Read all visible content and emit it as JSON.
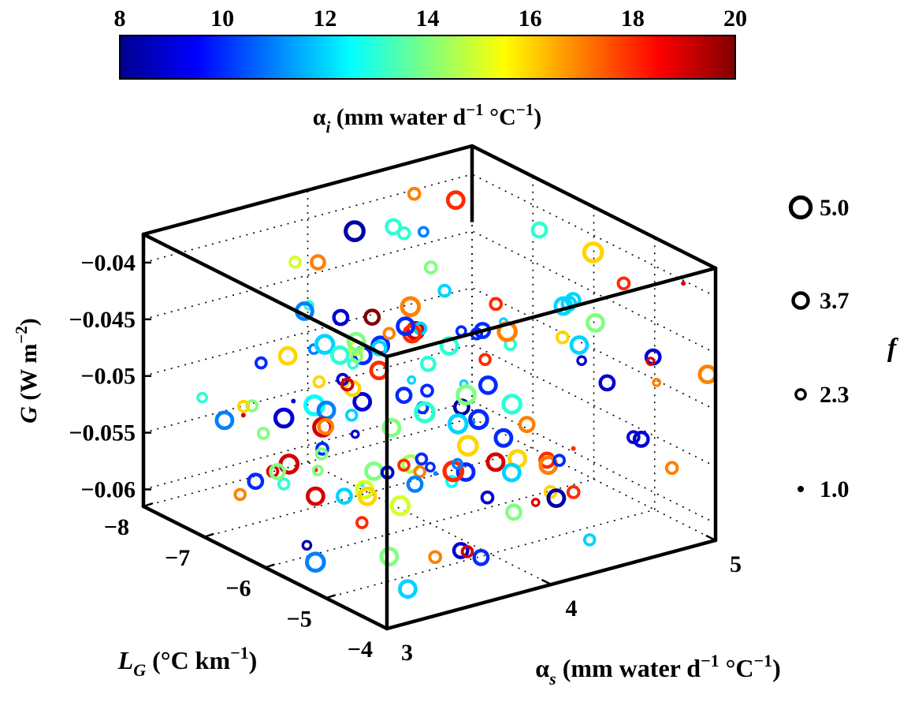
{
  "chart_data": {
    "type": "scatter",
    "title": "",
    "colorbar": {
      "ticks": [
        "8",
        "10",
        "12",
        "14",
        "16",
        "18",
        "20"
      ],
      "range": [
        8,
        20
      ],
      "colormap": "jet",
      "label_main": "α",
      "label_sub": "i",
      "label_rest": " (mm water d",
      "label_exp1": "−1",
      "label_mid": " °C",
      "label_exp2": "−1",
      "label_end": ")"
    },
    "axes": {
      "g": {
        "label_main": "G",
        "label_rest": " (W m",
        "label_exp": "−2",
        "label_end": ")",
        "ticks": [
          "−0.04",
          "−0.045",
          "−0.05",
          "−0.055",
          "−0.06"
        ],
        "range": [
          -0.0615,
          -0.0375
        ]
      },
      "lg": {
        "label_main": "L",
        "label_sub": "G",
        "label_rest": " (°C km",
        "label_exp": "−1",
        "label_end": ")",
        "ticks": [
          "−4",
          "−5",
          "−6",
          "−7",
          "−8"
        ],
        "range": [
          -4,
          -8
        ]
      },
      "as": {
        "label_main": "α",
        "label_sub": "s",
        "label_rest": " (mm water d",
        "label_exp1": "−1",
        "label_mid": " °C",
        "label_exp2": "−1",
        "label_end": ")",
        "ticks": [
          "3",
          "4",
          "5"
        ],
        "range": [
          3,
          5
        ]
      }
    },
    "size_legend": {
      "title": "f",
      "entries": [
        {
          "label": "5.0",
          "value": 5.0
        },
        {
          "label": "3.7",
          "value": 3.7
        },
        {
          "label": "2.3",
          "value": 2.3
        },
        {
          "label": "1.0",
          "value": 1.0
        }
      ]
    },
    "points": [
      {
        "c": 12.5,
        "f": 2.3
      },
      {
        "c": 11,
        "f": 1
      },
      {
        "c": 17,
        "f": 1.5
      },
      {
        "c": 10,
        "f": 3.7
      },
      {
        "c": 14,
        "f": 2.3
      },
      {
        "c": 16,
        "f": 2.5
      },
      {
        "c": 14.5,
        "f": 3.7
      },
      {
        "c": 19,
        "f": 1
      },
      {
        "c": 12,
        "f": 1.5
      },
      {
        "c": 10,
        "f": 4
      },
      {
        "c": 18,
        "f": 1
      },
      {
        "c": 9,
        "f": 1
      },
      {
        "c": 13,
        "f": 1
      },
      {
        "c": 12.5,
        "f": 4.2
      },
      {
        "c": 17,
        "f": 2.5
      },
      {
        "c": 11,
        "f": 3.7
      },
      {
        "c": 20,
        "f": 3.2
      },
      {
        "c": 19,
        "f": 2.3
      },
      {
        "c": 8.5,
        "f": 1.8
      },
      {
        "c": 13,
        "f": 2.3
      },
      {
        "c": 10,
        "f": 2.3
      },
      {
        "c": 17,
        "f": 4
      },
      {
        "c": 10,
        "f": 2.3
      },
      {
        "c": 18,
        "f": 2.5
      },
      {
        "c": 12,
        "f": 3
      },
      {
        "c": 18,
        "f": 3.7
      },
      {
        "c": 19,
        "f": 3.7
      },
      {
        "c": 9,
        "f": 2.5
      },
      {
        "c": 12,
        "f": 1.5
      },
      {
        "c": 15,
        "f": 2.3
      },
      {
        "c": 10,
        "f": 3.7
      },
      {
        "c": 13,
        "f": 1.8
      },
      {
        "c": 16,
        "f": 2.5
      },
      {
        "c": 11,
        "f": 2
      },
      {
        "c": 10,
        "f": 3.2
      },
      {
        "c": 9,
        "f": 1.8
      },
      {
        "c": 13,
        "f": 4
      },
      {
        "c": 17,
        "f": 2.3
      },
      {
        "c": 14,
        "f": 3.7
      },
      {
        "c": 8.5,
        "f": 3.2
      },
      {
        "c": 13,
        "f": 2.3
      },
      {
        "c": 19,
        "f": 4
      },
      {
        "c": 13,
        "f": 3
      },
      {
        "c": 12,
        "f": 3.7
      },
      {
        "c": 14,
        "f": 2.3
      },
      {
        "c": 16,
        "f": 3.7
      },
      {
        "c": 9,
        "f": 2.5
      },
      {
        "c": 17,
        "f": 3
      },
      {
        "c": 10,
        "f": 2.3
      },
      {
        "c": 12,
        "f": 4
      },
      {
        "c": 14,
        "f": 3.7
      },
      {
        "c": 19,
        "f": 4
      },
      {
        "c": 10,
        "f": 3.2
      },
      {
        "c": 13,
        "f": 3.7
      },
      {
        "c": 9,
        "f": 3.2
      },
      {
        "c": 12,
        "f": 3.7
      },
      {
        "c": 16,
        "f": 4.2
      },
      {
        "c": 13,
        "f": 3.7
      },
      {
        "c": 18,
        "f": 2.5
      },
      {
        "c": 8.5,
        "f": 4.2
      },
      {
        "c": 11,
        "f": 3.7
      },
      {
        "c": 14,
        "f": 4
      },
      {
        "c": 10,
        "f": 2
      },
      {
        "c": 12,
        "f": 3
      },
      {
        "c": 19,
        "f": 3.7
      },
      {
        "c": 9,
        "f": 3.7
      },
      {
        "c": 14,
        "f": 3.2
      },
      {
        "c": 18,
        "f": 2.3
      },
      {
        "c": 10,
        "f": 2.5
      },
      {
        "c": 16,
        "f": 3.2
      },
      {
        "c": 18,
        "f": 1
      },
      {
        "c": 10,
        "f": 3.7
      },
      {
        "c": 19,
        "f": 1
      },
      {
        "c": 12,
        "f": 3.7
      },
      {
        "c": 17,
        "f": 2.3
      },
      {
        "c": 12,
        "f": 4
      },
      {
        "c": 11,
        "f": 4
      },
      {
        "c": 15,
        "f": 3
      },
      {
        "c": 13,
        "f": 2
      },
      {
        "c": 9,
        "f": 3.2
      },
      {
        "c": 14,
        "f": 3.7
      },
      {
        "c": 8.5,
        "f": 3.7
      },
      {
        "c": 18,
        "f": 3.7
      },
      {
        "c": 9,
        "f": 2.3
      },
      {
        "c": 10,
        "f": 3.2
      },
      {
        "c": 12,
        "f": 2.5
      },
      {
        "c": 17,
        "f": 2.5
      },
      {
        "c": 13,
        "f": 2.5
      },
      {
        "c": 11,
        "f": 1
      },
      {
        "c": 19,
        "f": 1.5
      },
      {
        "c": 10,
        "f": 2.5
      },
      {
        "c": 16,
        "f": 3.7
      },
      {
        "c": 13,
        "f": 2
      },
      {
        "c": 10,
        "f": 3.7
      },
      {
        "c": 18,
        "f": 2.3
      },
      {
        "c": 12,
        "f": 3
      },
      {
        "c": 15,
        "f": 3.7
      },
      {
        "c": 10,
        "f": 2.3
      },
      {
        "c": 17,
        "f": 4
      },
      {
        "c": 14,
        "f": 2.3
      },
      {
        "c": 9,
        "f": 4
      },
      {
        "c": 12,
        "f": 3.2
      },
      {
        "c": 18,
        "f": 2.5
      },
      {
        "c": 11,
        "f": 3.2
      },
      {
        "c": 17,
        "f": 3.2
      },
      {
        "c": 14,
        "f": 3.7
      },
      {
        "c": 16,
        "f": 2.3
      },
      {
        "c": 9,
        "f": 2.5
      },
      {
        "c": 18,
        "f": 3.2
      },
      {
        "c": 12,
        "f": 2.3
      },
      {
        "c": 10,
        "f": 3.7
      },
      {
        "c": 13,
        "f": 3.2
      },
      {
        "c": 19,
        "f": 2.5
      },
      {
        "c": 11,
        "f": 2
      },
      {
        "c": 17,
        "f": 3.7
      },
      {
        "c": 14,
        "f": 3.2
      },
      {
        "c": 9,
        "f": 1.5
      },
      {
        "c": 12,
        "f": 2.3
      },
      {
        "c": 18,
        "f": 4.2
      },
      {
        "c": 16,
        "f": 3.7
      },
      {
        "c": 11,
        "f": 2
      },
      {
        "c": 14,
        "f": 2.5
      },
      {
        "c": 10,
        "f": 3.2
      },
      {
        "c": 15,
        "f": 4
      },
      {
        "c": 19,
        "f": 2.3
      },
      {
        "c": 17,
        "f": 2.3
      },
      {
        "c": 12,
        "f": 2.5
      },
      {
        "c": 9,
        "f": 3.2
      },
      {
        "c": 14,
        "f": 3.7
      },
      {
        "c": 17,
        "f": 3.2
      },
      {
        "c": 10,
        "f": 2.3
      },
      {
        "c": 18,
        "f": 2.3
      },
      {
        "c": 13,
        "f": 4.2
      },
      {
        "c": 16,
        "f": 2.3
      },
      {
        "c": 11,
        "f": 3.7
      },
      {
        "c": 14,
        "f": 2
      },
      {
        "c": 19,
        "f": 3.7
      },
      {
        "c": 12,
        "f": 1.5
      },
      {
        "c": 9,
        "f": 3.2
      },
      {
        "c": 16,
        "f": 4.2
      },
      {
        "c": 17,
        "f": 2.5
      },
      {
        "c": 10,
        "f": 1.8
      },
      {
        "c": 13,
        "f": 3.2
      },
      {
        "c": 18,
        "f": 3.7
      },
      {
        "c": 9,
        "f": 3.2
      },
      {
        "c": 14,
        "f": 2.3
      },
      {
        "c": 12,
        "f": 3.7
      },
      {
        "c": 19,
        "f": 1.5
      },
      {
        "c": 17,
        "f": 3.7
      },
      {
        "c": 10,
        "f": 3.7
      }
    ]
  }
}
